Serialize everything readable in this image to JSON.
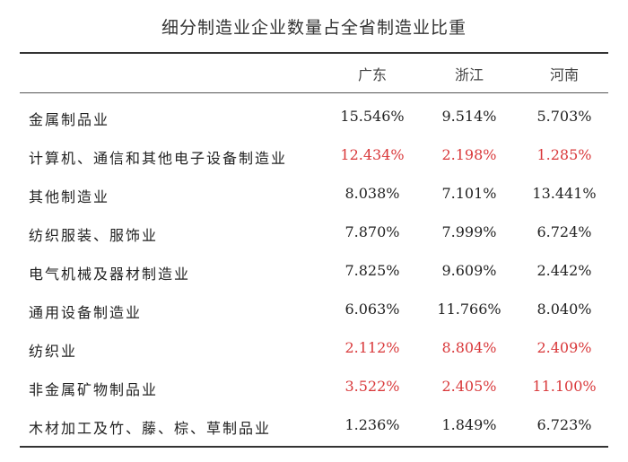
{
  "title": "细分制造业企业数量占全省制造业比重",
  "columns": [
    "广东",
    "浙江",
    "河南"
  ],
  "rows": [
    {
      "label": "金属制品业",
      "values": [
        "15.546%",
        "9.514%",
        "5.703%"
      ],
      "highlight": false
    },
    {
      "label": "计算机、通信和其他电子设备制造业",
      "values": [
        "12.434%",
        "2.198%",
        "1.285%"
      ],
      "highlight": true
    },
    {
      "label": "其他制造业",
      "values": [
        "8.038%",
        "7.101%",
        "13.441%"
      ],
      "highlight": false
    },
    {
      "label": "纺织服装、服饰业",
      "values": [
        "7.870%",
        "7.999%",
        "6.724%"
      ],
      "highlight": false
    },
    {
      "label": "电气机械及器材制造业",
      "values": [
        "7.825%",
        "9.609%",
        "2.442%"
      ],
      "highlight": false
    },
    {
      "label": "通用设备制造业",
      "values": [
        "6.063%",
        "11.766%",
        "8.040%"
      ],
      "highlight": false
    },
    {
      "label": "纺织业",
      "values": [
        "2.112%",
        "8.804%",
        "2.409%"
      ],
      "highlight": true
    },
    {
      "label": "非金属矿物制品业",
      "values": [
        "3.522%",
        "2.405%",
        "11.100%"
      ],
      "highlight": true
    },
    {
      "label": "木材加工及竹、藤、棕、草制品业",
      "values": [
        "1.236%",
        "1.849%",
        "6.723%"
      ],
      "highlight": false
    }
  ],
  "colors": {
    "highlight_text": "#d9383a",
    "normal_text": "#222222"
  }
}
